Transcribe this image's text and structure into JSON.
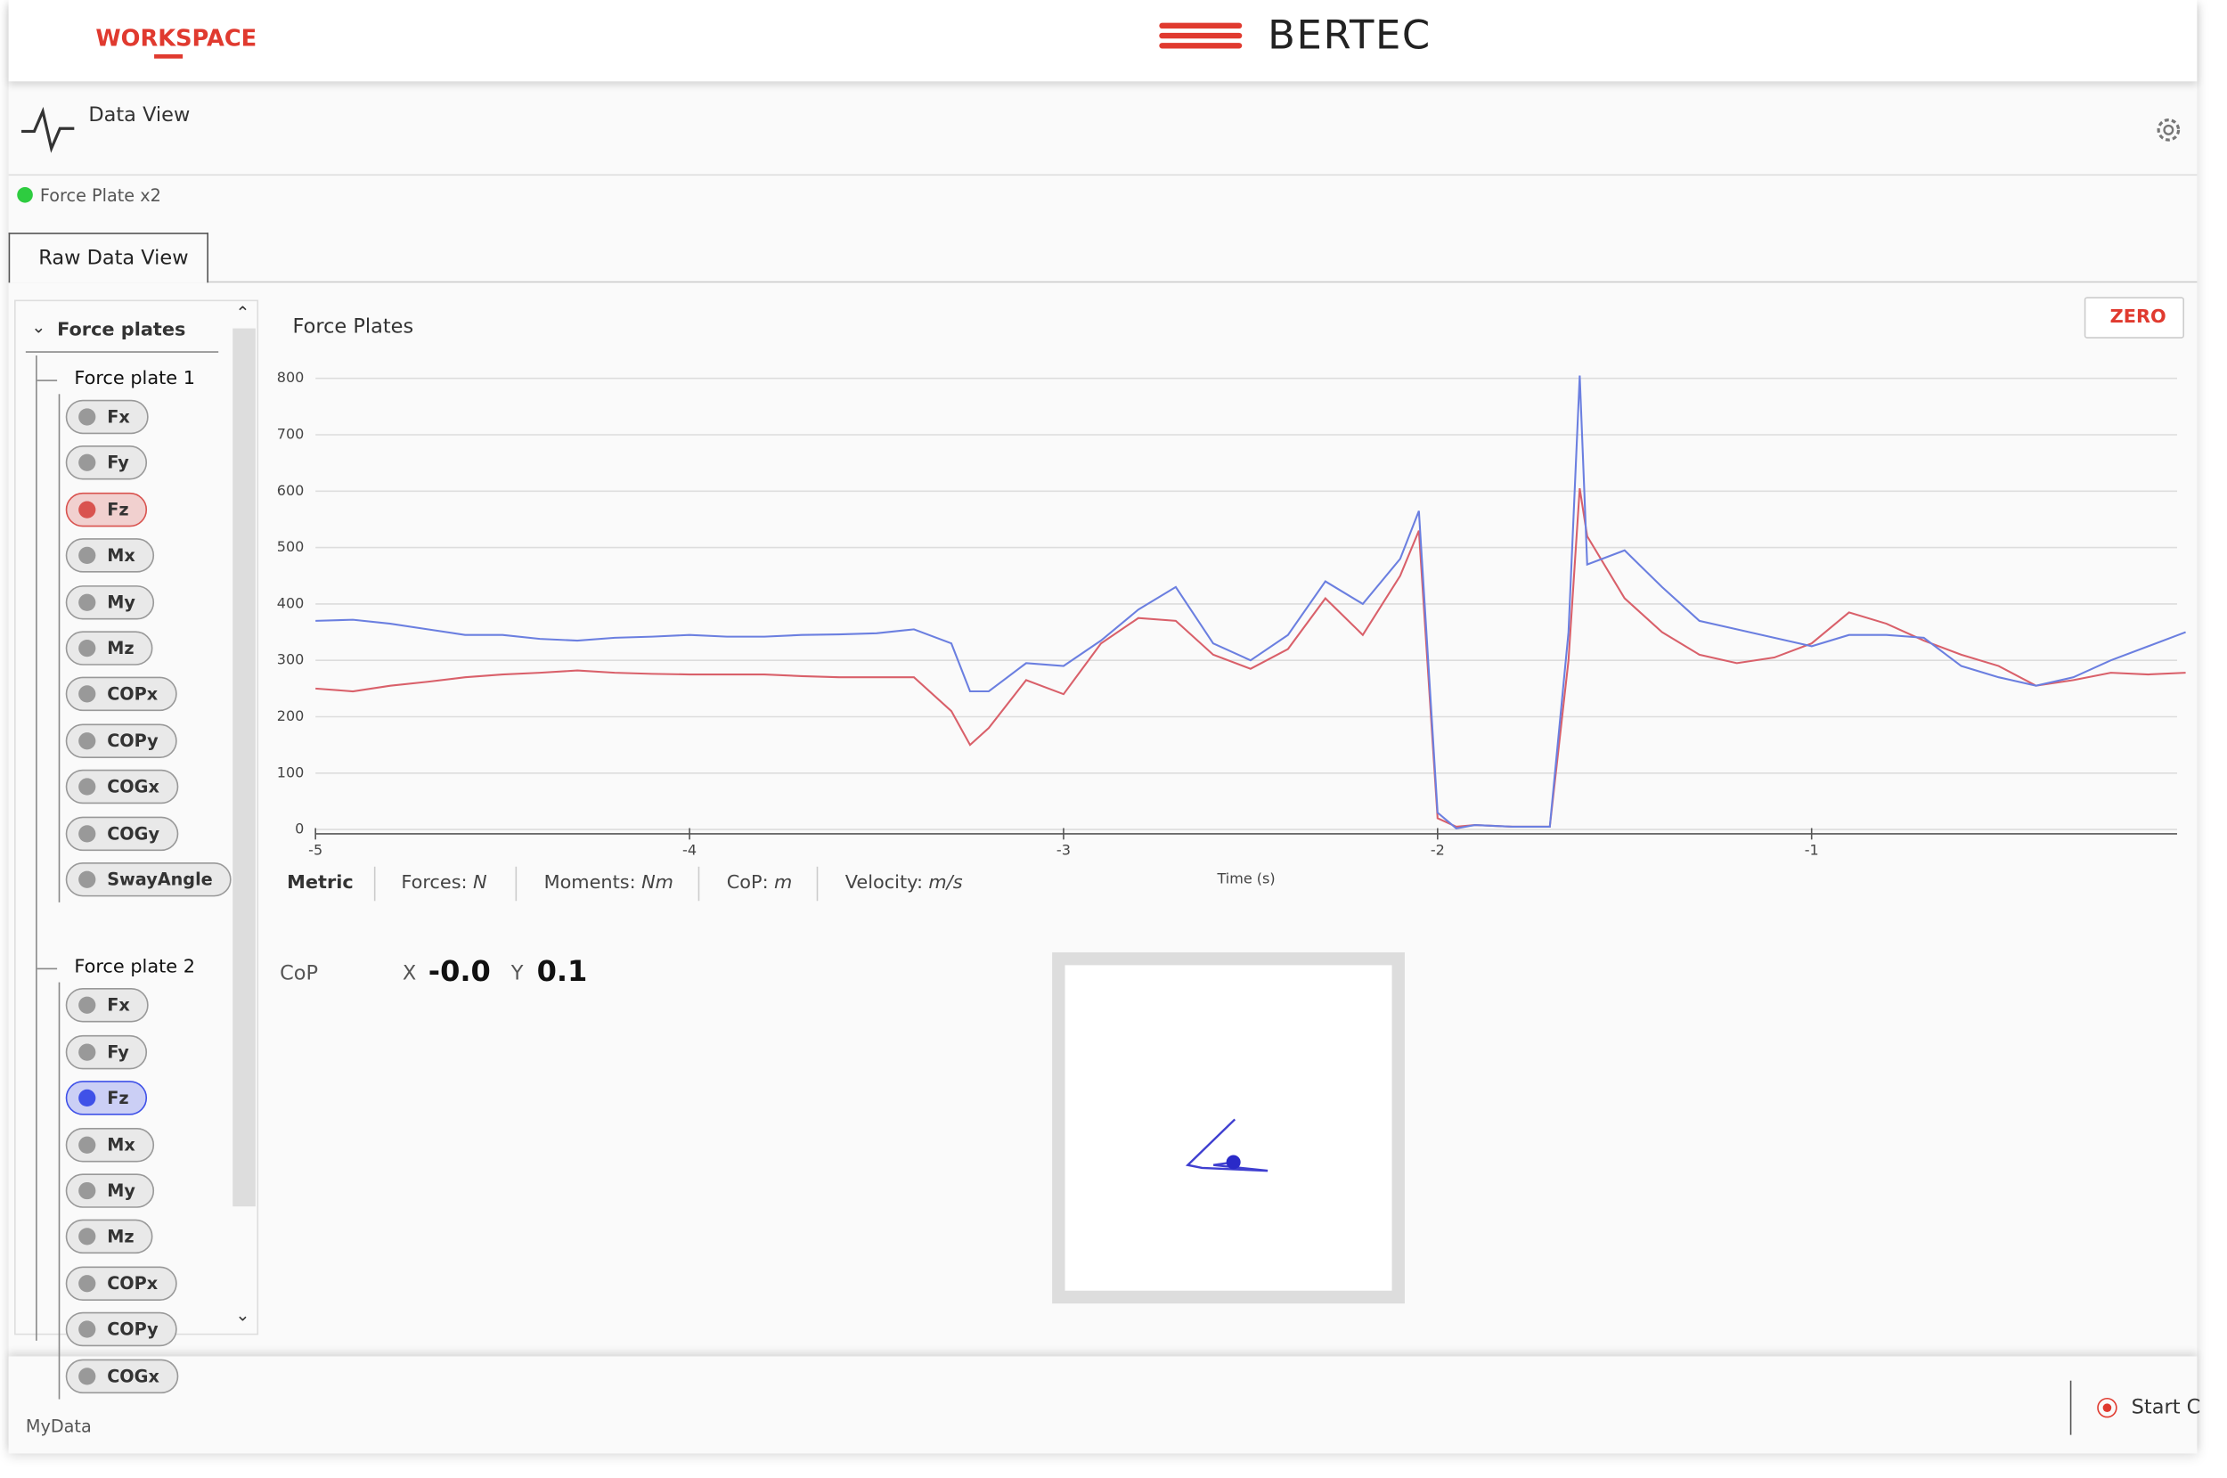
{
  "header": {
    "workspace": "WORKSPACE",
    "brand": "BERTEC"
  },
  "page": {
    "title": "Data View",
    "device": "Force Plate x2",
    "tab": "Raw Data View"
  },
  "sidebar": {
    "title": "Force plates",
    "groups": [
      {
        "title": "Force plate 1",
        "channels": [
          "Fx",
          "Fy",
          "Fz",
          "Mx",
          "My",
          "Mz",
          "COPx",
          "COPy",
          "COGx",
          "COGy",
          "SwayAngle"
        ],
        "highlighted": "Fz",
        "highlight_color": "#d9534f"
      },
      {
        "title": "Force plate 2",
        "channels": [
          "Fx",
          "Fy",
          "Fz",
          "Mx",
          "My",
          "Mz",
          "COPx",
          "COPy",
          "COGx"
        ],
        "highlighted": "Fz",
        "highlight_color": "#3f51e8"
      }
    ]
  },
  "zero_button": "ZERO",
  "chart_data": {
    "type": "line",
    "title": "Force Plates",
    "xlabel": "Time (s)",
    "x": [
      -5,
      -4.9,
      -4.8,
      -4.7,
      -4.6,
      -4.5,
      -4.4,
      -4.3,
      -4.2,
      -4.1,
      -4,
      -3.9,
      -3.8,
      -3.7,
      -3.6,
      -3.5,
      -3.4,
      -3.3,
      -3.25,
      -3.2,
      -3.1,
      -3,
      -2.9,
      -2.8,
      -2.7,
      -2.6,
      -2.5,
      -2.4,
      -2.3,
      -2.2,
      -2.1,
      -2.05,
      -2,
      -1.95,
      -1.9,
      -1.8,
      -1.7,
      -1.65,
      -1.62,
      -1.6,
      -1.5,
      -1.4,
      -1.3,
      -1.2,
      -1.1,
      -1,
      -0.9,
      -0.8,
      -0.7,
      -0.6,
      -0.5,
      -0.4,
      -0.3,
      -0.2,
      -0.1,
      0
    ],
    "series": [
      {
        "color": "#d9606a",
        "values": [
          250,
          245,
          255,
          262,
          270,
          275,
          278,
          282,
          278,
          276,
          275,
          275,
          275,
          272,
          270,
          270,
          270,
          210,
          150,
          180,
          265,
          240,
          330,
          375,
          370,
          310,
          285,
          320,
          410,
          345,
          450,
          530,
          20,
          5,
          8,
          5,
          5,
          300,
          605,
          520,
          410,
          350,
          310,
          295,
          305,
          330,
          385,
          365,
          335,
          310,
          290,
          255,
          265,
          278,
          275,
          278
        ]
      },
      {
        "color": "#6b7fe0",
        "values": [
          370,
          372,
          365,
          355,
          345,
          345,
          338,
          335,
          340,
          342,
          345,
          342,
          342,
          345,
          346,
          348,
          355,
          330,
          245,
          245,
          295,
          290,
          335,
          390,
          430,
          330,
          300,
          345,
          440,
          400,
          480,
          565,
          30,
          2,
          8,
          5,
          5,
          350,
          805,
          470,
          495,
          430,
          370,
          355,
          340,
          325,
          345,
          345,
          340,
          290,
          270,
          255,
          270,
          300,
          325,
          350
        ]
      }
    ],
    "xlim": [
      -5,
      0
    ],
    "ylim": [
      0,
      800
    ],
    "xticks": [
      -5,
      -4,
      -3,
      -2,
      -1
    ],
    "yticks": [
      0,
      100,
      200,
      300,
      400,
      500,
      600,
      700,
      800
    ],
    "grid": true
  },
  "units": {
    "system": "Metric",
    "items": [
      {
        "label": "Forces:",
        "unit": "N"
      },
      {
        "label": "Moments:",
        "unit": "Nm"
      },
      {
        "label": "CoP:",
        "unit": "m"
      },
      {
        "label": "Velocity:",
        "unit": "m/s"
      }
    ]
  },
  "cop": {
    "label": "CoP",
    "x_label": "X",
    "x_value": "-0.0",
    "y_label": "Y",
    "y_value": "0.1"
  },
  "footer": {
    "name": "MyData",
    "action": "Start C"
  }
}
